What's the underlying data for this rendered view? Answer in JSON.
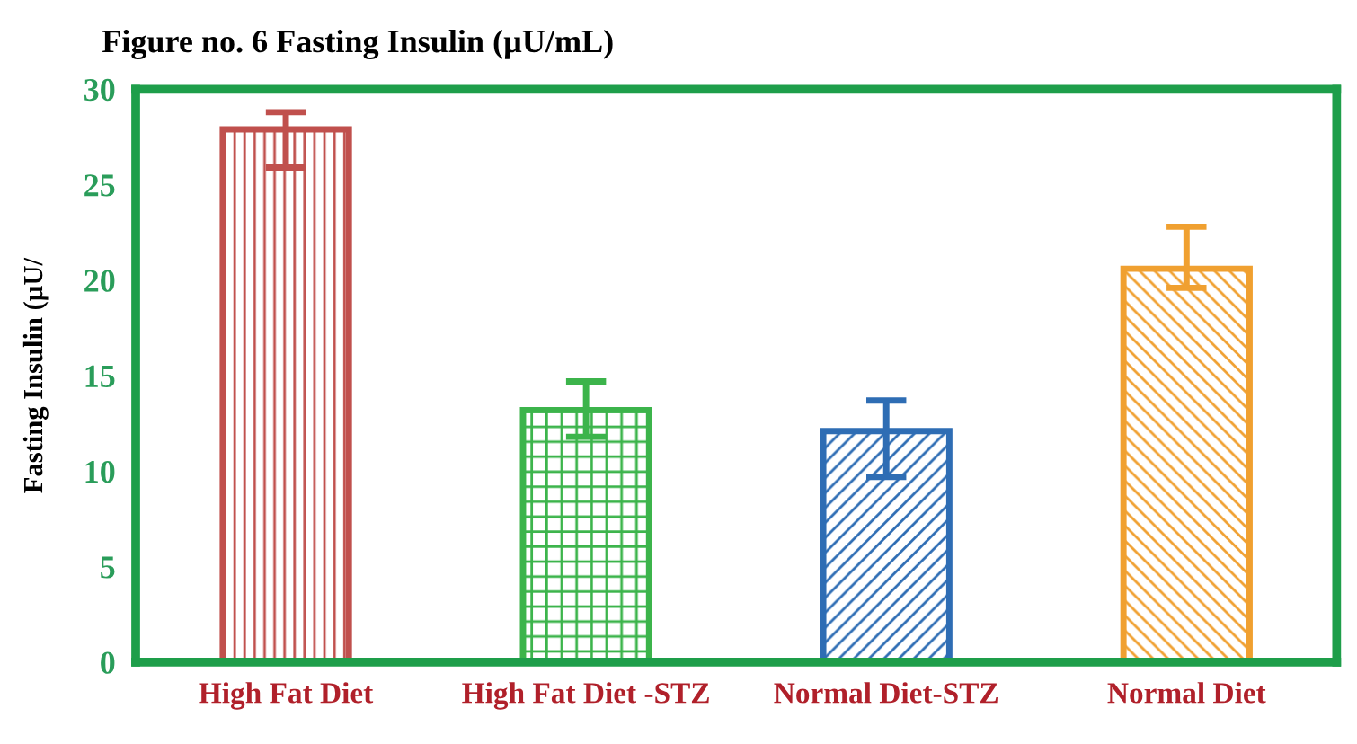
{
  "chart_data": {
    "type": "bar",
    "title": "Figure no. 6 Fasting Insulin (µU/mL)",
    "ylabel": "Fasting Insulin (µU/",
    "categories": [
      "High Fat Diet",
      "High Fat Diet -STZ",
      "Normal Diet-STZ",
      "Normal Diet"
    ],
    "values": [
      27.9,
      13.2,
      12.1,
      20.6
    ],
    "errors": [
      [
        25.9,
        28.8
      ],
      [
        11.8,
        14.7
      ],
      [
        9.7,
        13.7
      ],
      [
        19.6,
        22.8
      ]
    ],
    "colors": [
      "#c0504d",
      "#3cb44b",
      "#2e6db4",
      "#f0a030"
    ],
    "ylim": [
      0,
      30
    ],
    "yticks": [
      0,
      5,
      10,
      15,
      20,
      25,
      30
    ],
    "grid": false,
    "legend": false
  }
}
